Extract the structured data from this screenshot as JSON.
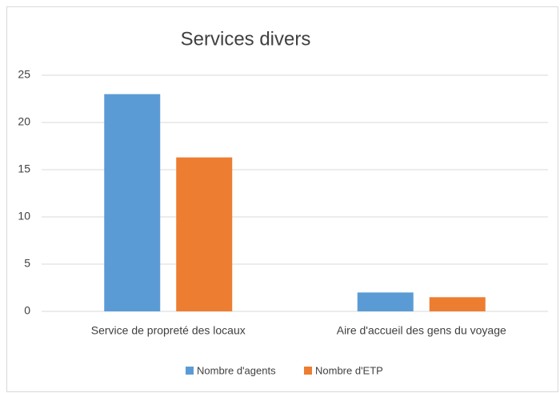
{
  "chart_data": {
    "type": "bar",
    "title": "Services divers",
    "categories": [
      "Service de propreté des locaux",
      "Aire d'accueil des gens du voyage"
    ],
    "series": [
      {
        "name": "Nombre d'agents",
        "color": "#5b9bd5",
        "values": [
          23,
          2
        ]
      },
      {
        "name": "Nombre d'ETP",
        "color": "#ed7d31",
        "values": [
          16.3,
          1.5
        ]
      }
    ],
    "ylim": [
      0,
      25
    ],
    "yticks": [
      0,
      5,
      10,
      15,
      20,
      25
    ],
    "grid": true,
    "legend": "bottom"
  }
}
